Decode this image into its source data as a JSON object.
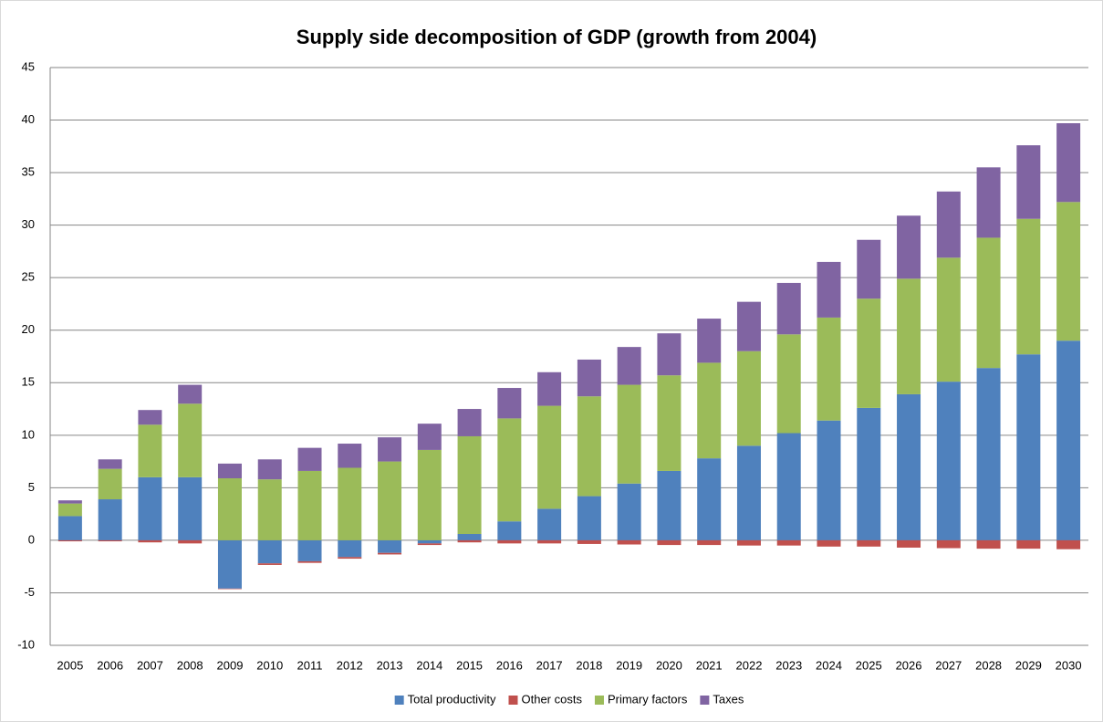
{
  "chart_data": {
    "type": "stacked_bar",
    "title": "Supply side decomposition of GDP (growth from 2004)",
    "categories": [
      "2005",
      "2006",
      "2007",
      "2008",
      "2009",
      "2010",
      "2011",
      "2012",
      "2013",
      "2014",
      "2015",
      "2016",
      "2017",
      "2018",
      "2019",
      "2020",
      "2021",
      "2022",
      "2023",
      "2024",
      "2025",
      "2026",
      "2027",
      "2028",
      "2029",
      "2030"
    ],
    "series": [
      {
        "name": "Total productivity",
        "color": "#4f81bd",
        "values": [
          2.3,
          3.9,
          6.0,
          6.0,
          -4.6,
          -2.2,
          -2.0,
          -1.6,
          -1.2,
          -0.3,
          0.6,
          1.8,
          3.0,
          4.2,
          5.4,
          6.6,
          7.8,
          9.0,
          10.2,
          11.4,
          12.6,
          13.9,
          15.1,
          16.4,
          17.7,
          19.0
        ]
      },
      {
        "name": "Other costs",
        "color": "#c0504d",
        "values": [
          -0.1,
          -0.1,
          -0.2,
          -0.3,
          -0.05,
          -0.15,
          -0.15,
          -0.15,
          -0.15,
          -0.15,
          -0.2,
          -0.3,
          -0.3,
          -0.35,
          -0.4,
          -0.45,
          -0.45,
          -0.5,
          -0.5,
          -0.6,
          -0.6,
          -0.7,
          -0.75,
          -0.8,
          -0.8,
          -0.85
        ]
      },
      {
        "name": "Primary factors",
        "color": "#9bbb59",
        "values": [
          1.2,
          2.9,
          5.0,
          7.0,
          5.9,
          5.8,
          6.6,
          6.9,
          7.5,
          8.6,
          9.3,
          9.8,
          9.8,
          9.5,
          9.4,
          9.1,
          9.1,
          9.0,
          9.4,
          9.8,
          10.4,
          11.0,
          11.8,
          12.4,
          12.9,
          13.2
        ]
      },
      {
        "name": "Taxes",
        "color": "#8064a2",
        "values": [
          0.3,
          0.9,
          1.4,
          1.8,
          1.4,
          1.9,
          2.2,
          2.3,
          2.3,
          2.5,
          2.6,
          2.9,
          3.2,
          3.5,
          3.6,
          4.0,
          4.2,
          4.7,
          4.9,
          5.3,
          5.6,
          6.0,
          6.3,
          6.7,
          7.0,
          7.5
        ]
      }
    ],
    "ylim": [
      -10,
      45
    ],
    "yticks": [
      -10,
      -5,
      0,
      5,
      10,
      15,
      20,
      25,
      30,
      35,
      40,
      45
    ],
    "grid": true,
    "legend": "bottom"
  }
}
